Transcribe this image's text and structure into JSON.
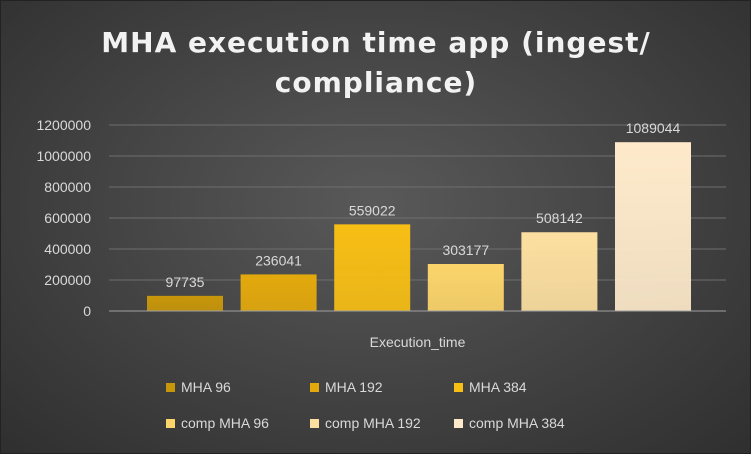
{
  "chart_data": {
    "type": "bar",
    "title": "MHA execution time app (ingest/ compliance)",
    "categories": [
      "Execution_time"
    ],
    "series": [
      {
        "name": "MHA 96",
        "values": [
          97735
        ],
        "color": "#c8960a"
      },
      {
        "name": "MHA 192",
        "values": [
          236041
        ],
        "color": "#e3a90c"
      },
      {
        "name": "MHA 384",
        "values": [
          559022
        ],
        "color": "#f7be14"
      },
      {
        "name": "comp MHA 96",
        "values": [
          303177
        ],
        "color": "#fbd46a"
      },
      {
        "name": "comp MHA 192",
        "values": [
          508142
        ],
        "color": "#fcdfa0"
      },
      {
        "name": "comp MHA 384",
        "values": [
          1089044
        ],
        "color": "#feeacb"
      }
    ],
    "xlabel": "",
    "ylabel": "",
    "ylim": [
      0,
      1200000
    ],
    "yticks": [
      "0",
      "200000",
      "400000",
      "600000",
      "800000",
      "1000000",
      "1200000"
    ],
    "grid": true,
    "legend_position": "bottom"
  }
}
